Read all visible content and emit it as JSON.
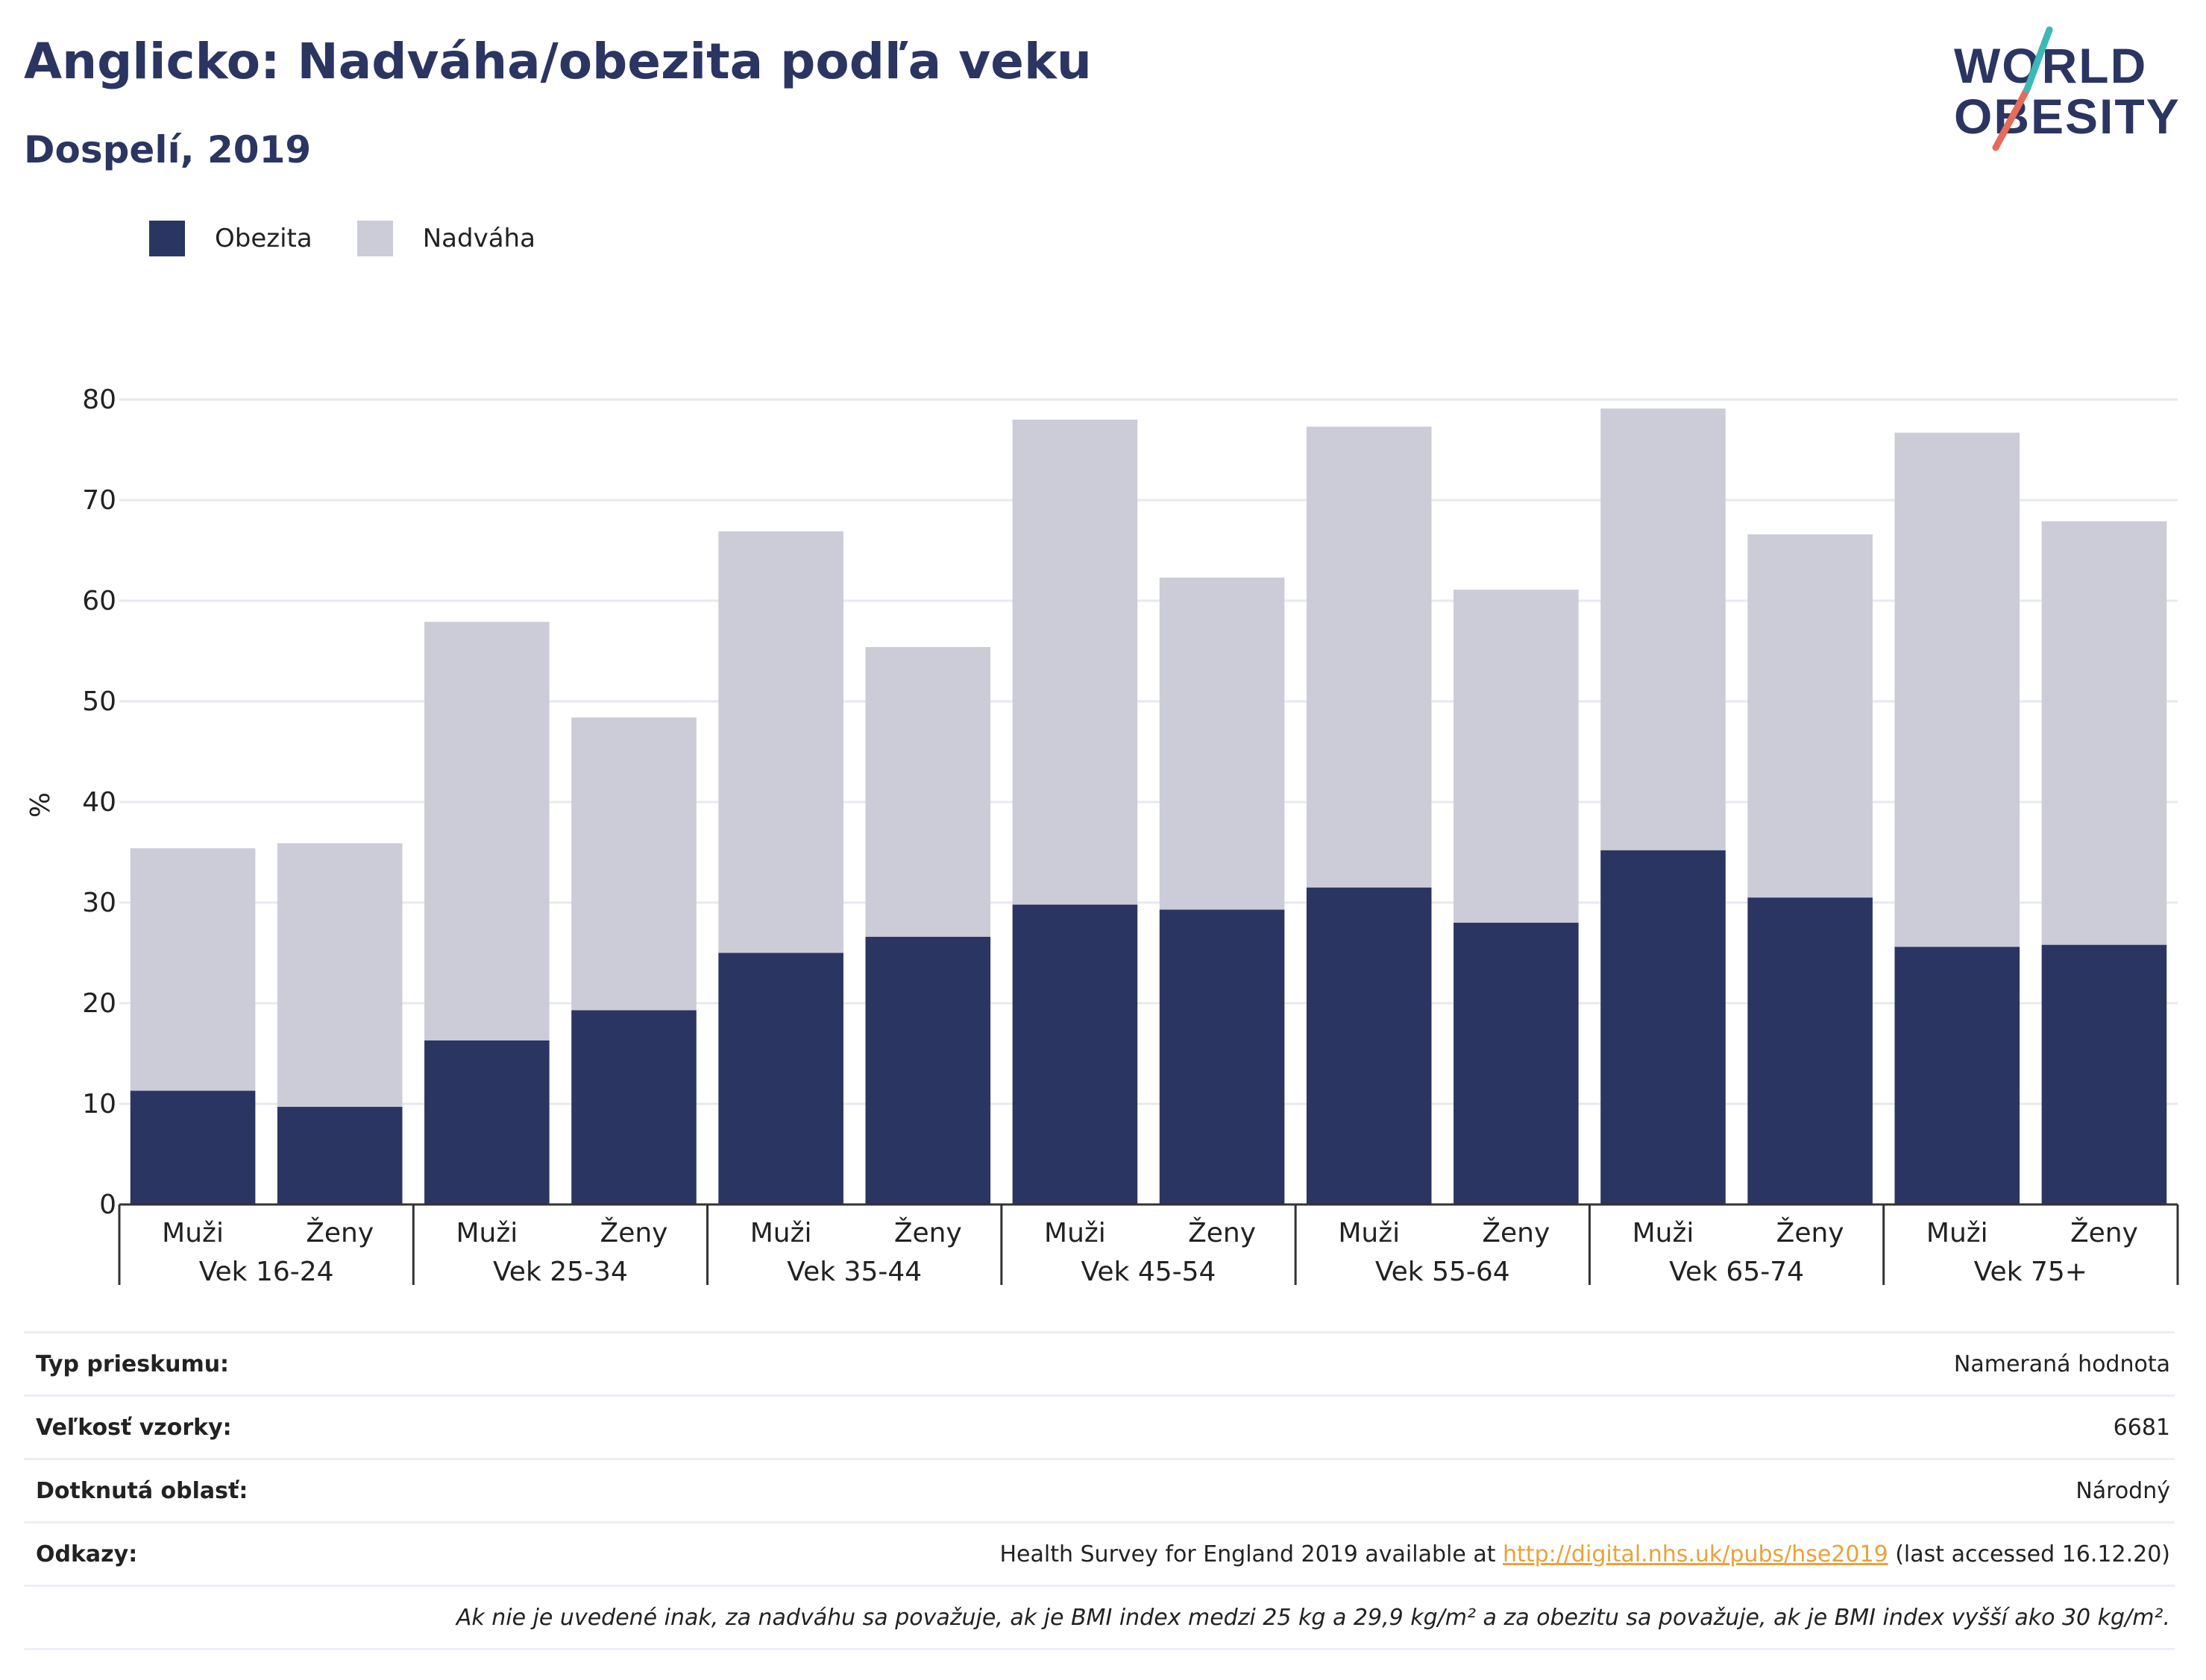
{
  "title": "Anglicko: Nadváha/obezita podľa veku",
  "subtitle": "Dospelí, 2019",
  "logo": {
    "line1": "WORLD",
    "line2": "OBESITY"
  },
  "colors": {
    "obesity": "#2a3562",
    "overweight": "#cbccd8",
    "title": "#2b3562",
    "link": "#e8a33a",
    "grid": "#e8e9f0"
  },
  "chart_data": {
    "type": "bar",
    "stacked": true,
    "ylabel": "%",
    "ylim": [
      0,
      80
    ],
    "yticks": [
      0,
      10,
      20,
      30,
      40,
      50,
      60,
      70,
      80
    ],
    "grid": true,
    "legend_position": "top-left",
    "groups": [
      "Vek 16-24",
      "Vek 25-34",
      "Vek 35-44",
      "Vek 45-54",
      "Vek 55-64",
      "Vek 65-74",
      "Vek 75+"
    ],
    "subcategories": [
      "Muži",
      "Ženy"
    ],
    "series": [
      {
        "name": "Obezita",
        "values": [
          11.3,
          9.7,
          16.3,
          19.3,
          25.0,
          26.6,
          29.8,
          29.3,
          31.5,
          28.0,
          35.2,
          30.5,
          25.6,
          25.8
        ]
      },
      {
        "name": "Nadváha",
        "values": [
          24.1,
          26.2,
          41.6,
          29.1,
          41.9,
          28.8,
          48.2,
          33.0,
          45.8,
          33.1,
          43.9,
          36.1,
          51.1,
          42.1
        ]
      }
    ]
  },
  "info": {
    "rows": [
      {
        "label": "Typ prieskumu:",
        "value": "Nameraná hodnota"
      },
      {
        "label": "Veľkosť vzorky:",
        "value": "6681"
      },
      {
        "label": "Dotknutá oblasť:",
        "value": "Národný"
      }
    ],
    "references": {
      "label": "Odkazy:",
      "prefix": "Health Survey for England 2019 available at ",
      "link": "http://digital.nhs.uk/pubs/hse2019",
      "suffix": " (last accessed 16.12.20)"
    },
    "note": "Ak nie je uvedené inak, za nadváhu sa považuje, ak je BMI index medzi 25 kg a 29,9 kg/m² a za obezitu sa považuje, ak je BMI index vyšší ako 30 kg/m²."
  }
}
